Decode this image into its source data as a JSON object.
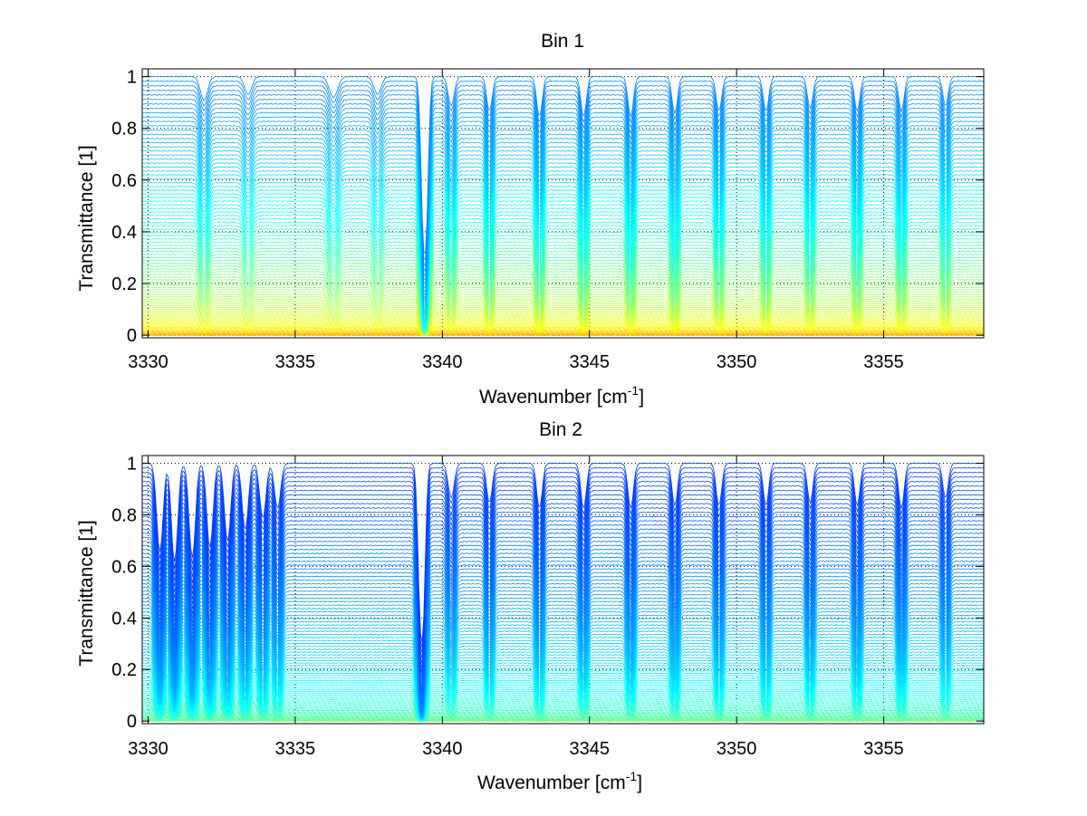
{
  "figure": {
    "background": "#ffffff"
  },
  "chart_data": [
    {
      "type": "line",
      "title": "Bin 1",
      "xlabel": "Wavenumber [cm",
      "xlabel_sup": "-1",
      "xlabel_suffix": "]",
      "ylabel": "Transmittance [1]",
      "xlim": [
        3329.8,
        3358.4
      ],
      "ylim": [
        -0.01,
        1.03
      ],
      "xticks": [
        3330,
        3335,
        3340,
        3345,
        3350,
        3355
      ],
      "xtick_labels": [
        "3330",
        "3335",
        "3340",
        "3345",
        "3350",
        "3355"
      ],
      "yticks": [
        0,
        0.2,
        0.4,
        0.6,
        0.8,
        1
      ],
      "ytick_labels": [
        "0",
        "0.2",
        "0.4",
        "0.6",
        "0.8",
        "1"
      ],
      "grid": "dotted",
      "colormap": "jet",
      "series_count": 90,
      "description_values": {
        "baseline_transmittance_range": [
          0.0,
          1.0
        ],
        "colormap_span": [
          0.25,
          0.72
        ],
        "absorption_lines_cm-1": [
          3331.9,
          3333.4,
          3336.3,
          3337.8,
          3339.4,
          3340.3,
          3341.6,
          3343.3,
          3344.8,
          3346.4,
          3347.9,
          3349.4,
          3351.0,
          3352.5,
          3354.1,
          3355.6,
          3357.1
        ],
        "absorption_depths": [
          0.08,
          0.06,
          0.07,
          0.06,
          1.0,
          0.1,
          0.12,
          0.14,
          0.14,
          0.14,
          0.13,
          0.12,
          0.12,
          0.11,
          0.12,
          0.12,
          0.1
        ],
        "absorption_widths_cm-1": [
          0.12,
          0.12,
          0.14,
          0.12,
          0.09,
          0.1,
          0.09,
          0.09,
          0.09,
          0.09,
          0.09,
          0.09,
          0.09,
          0.09,
          0.09,
          0.09,
          0.09
        ]
      }
    },
    {
      "type": "line",
      "title": "Bin 2",
      "xlabel": "Wavenumber [cm",
      "xlabel_sup": "-1",
      "xlabel_suffix": "]",
      "ylabel": "Transmittance [1]",
      "xlim": [
        3329.8,
        3358.4
      ],
      "ylim": [
        -0.01,
        1.03
      ],
      "xticks": [
        3330,
        3335,
        3340,
        3345,
        3350,
        3355
      ],
      "xtick_labels": [
        "3330",
        "3335",
        "3340",
        "3345",
        "3350",
        "3355"
      ],
      "yticks": [
        0,
        0.2,
        0.4,
        0.6,
        0.8,
        1
      ],
      "ytick_labels": [
        "0",
        "0.2",
        "0.4",
        "0.6",
        "0.8",
        "1"
      ],
      "grid": "dotted",
      "colormap": "jet",
      "series_count": 90,
      "description_values": {
        "baseline_transmittance_range": [
          0.0,
          1.0
        ],
        "colormap_span": [
          0.18,
          0.5
        ],
        "absorption_lines_cm-1": [
          3330.4,
          3330.9,
          3331.5,
          3332.1,
          3332.7,
          3333.3,
          3333.9,
          3334.4,
          3339.3,
          3340.3,
          3341.6,
          3343.3,
          3344.8,
          3346.4,
          3347.9,
          3349.4,
          3351.0,
          3352.5,
          3354.1,
          3355.6,
          3357.1
        ],
        "absorption_depths": [
          0.35,
          0.4,
          0.38,
          0.33,
          0.3,
          0.25,
          0.2,
          0.16,
          1.0,
          0.12,
          0.14,
          0.16,
          0.16,
          0.16,
          0.15,
          0.15,
          0.15,
          0.14,
          0.15,
          0.16,
          0.12
        ],
        "absorption_widths_cm-1": [
          0.1,
          0.1,
          0.1,
          0.1,
          0.1,
          0.1,
          0.1,
          0.1,
          0.09,
          0.1,
          0.09,
          0.09,
          0.09,
          0.09,
          0.09,
          0.09,
          0.09,
          0.09,
          0.09,
          0.09,
          0.09
        ]
      }
    }
  ]
}
